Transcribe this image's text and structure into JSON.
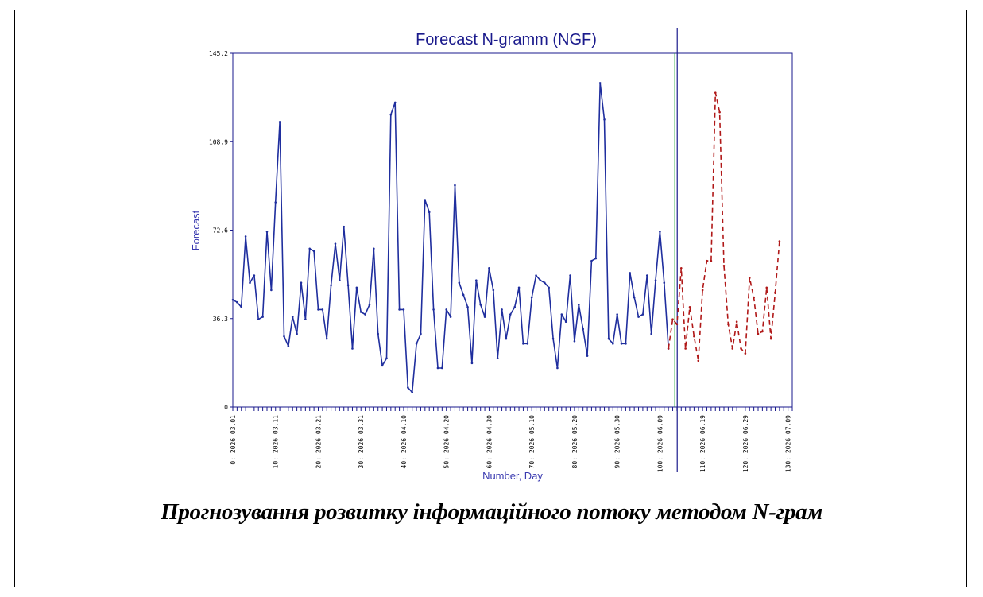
{
  "caption": "Прогнозування розвитку інформаційного потоку методом N-грам",
  "chart_data": {
    "type": "line",
    "title": "Forecast N-gramm (NGF)",
    "xlabel": "Number, Day",
    "ylabel": "Forecast",
    "ylim": [
      0,
      145.2
    ],
    "xlim": [
      0,
      131
    ],
    "yticks": [
      "0",
      "36.3",
      "72.6",
      "108.9",
      "145.2"
    ],
    "xticks": [
      {
        "x": 0,
        "label": "0: 2026.03.01"
      },
      {
        "x": 10,
        "label": "10: 2026.03.11"
      },
      {
        "x": 20,
        "label": "20: 2026.03.21"
      },
      {
        "x": 30,
        "label": "30: 2026.03.31"
      },
      {
        "x": 40,
        "label": "40: 2026.04.10"
      },
      {
        "x": 50,
        "label": "50: 2026.04.20"
      },
      {
        "x": 60,
        "label": "60: 2026.04.30"
      },
      {
        "x": 70,
        "label": "70: 2026.05.10"
      },
      {
        "x": 80,
        "label": "80: 2026.05.20"
      },
      {
        "x": 90,
        "label": "90: 2026.05.30"
      },
      {
        "x": 100,
        "label": "100: 2026.06.09"
      },
      {
        "x": 110,
        "label": "110: 2026.06.19"
      },
      {
        "x": 120,
        "label": "120: 2026.06.29"
      },
      {
        "x": 130,
        "label": "130: 2026.07.09"
      }
    ],
    "grid": false,
    "divider_x": 103.5,
    "colors": {
      "history": "#1f2e9e",
      "forecast": "#b01818",
      "divider_green": "#17a32a",
      "divider_blue": "#1a1a8c",
      "axis": "#1a1a8c"
    },
    "series": [
      {
        "style": "solid",
        "values": [
          [
            0,
            44
          ],
          [
            1,
            43
          ],
          [
            2,
            41
          ],
          [
            3,
            70
          ],
          [
            4,
            51
          ],
          [
            5,
            54
          ],
          [
            6,
            36
          ],
          [
            7,
            37
          ],
          [
            8,
            72
          ],
          [
            9,
            48
          ],
          [
            10,
            84
          ],
          [
            11,
            117
          ],
          [
            12,
            29
          ],
          [
            13,
            25
          ],
          [
            14,
            37
          ],
          [
            15,
            30
          ],
          [
            16,
            51
          ],
          [
            17,
            36
          ],
          [
            18,
            65
          ],
          [
            19,
            64
          ],
          [
            20,
            40
          ],
          [
            21,
            40
          ],
          [
            22,
            28
          ],
          [
            23,
            50
          ],
          [
            24,
            67
          ],
          [
            25,
            52
          ],
          [
            26,
            74
          ],
          [
            27,
            50
          ],
          [
            28,
            24
          ],
          [
            29,
            49
          ],
          [
            30,
            39
          ],
          [
            31,
            38
          ],
          [
            32,
            42
          ],
          [
            33,
            65
          ],
          [
            34,
            30
          ],
          [
            35,
            17
          ],
          [
            36,
            20
          ],
          [
            37,
            120
          ],
          [
            38,
            125
          ],
          [
            39,
            40
          ],
          [
            40,
            40
          ],
          [
            41,
            8
          ],
          [
            42,
            6
          ],
          [
            43,
            26
          ],
          [
            44,
            30
          ],
          [
            45,
            85
          ],
          [
            46,
            80
          ],
          [
            47,
            40
          ],
          [
            48,
            16
          ],
          [
            49,
            16
          ],
          [
            50,
            40
          ],
          [
            51,
            37
          ],
          [
            52,
            91
          ],
          [
            53,
            51
          ],
          [
            54,
            46
          ],
          [
            55,
            41
          ],
          [
            56,
            18
          ],
          [
            57,
            52
          ],
          [
            58,
            42
          ],
          [
            59,
            37
          ],
          [
            60,
            57
          ],
          [
            61,
            48
          ],
          [
            62,
            20
          ],
          [
            63,
            40
          ],
          [
            64,
            28
          ],
          [
            65,
            38
          ],
          [
            66,
            41
          ],
          [
            67,
            49
          ],
          [
            68,
            26
          ],
          [
            69,
            26
          ],
          [
            70,
            45
          ],
          [
            71,
            54
          ],
          [
            72,
            52
          ],
          [
            73,
            51
          ],
          [
            74,
            49
          ],
          [
            75,
            28
          ],
          [
            76,
            16
          ],
          [
            77,
            38
          ],
          [
            78,
            35
          ],
          [
            79,
            54
          ],
          [
            80,
            27
          ],
          [
            81,
            42
          ],
          [
            82,
            32
          ],
          [
            83,
            21
          ],
          [
            84,
            60
          ],
          [
            85,
            61
          ],
          [
            86,
            133
          ],
          [
            87,
            118
          ],
          [
            88,
            28
          ],
          [
            89,
            26
          ],
          [
            90,
            38
          ],
          [
            91,
            26
          ],
          [
            92,
            26
          ],
          [
            93,
            55
          ],
          [
            94,
            45
          ],
          [
            95,
            37
          ],
          [
            96,
            38
          ],
          [
            97,
            54
          ],
          [
            98,
            30
          ],
          [
            99,
            52
          ],
          [
            100,
            72
          ],
          [
            101,
            51
          ],
          [
            102,
            24
          ]
        ]
      },
      {
        "style": "dashed",
        "values": [
          [
            102,
            24
          ],
          [
            103,
            36
          ],
          [
            104,
            34
          ],
          [
            105,
            57
          ],
          [
            106,
            24
          ],
          [
            107,
            41
          ],
          [
            108,
            29
          ],
          [
            109,
            19
          ],
          [
            110,
            48
          ],
          [
            111,
            60
          ],
          [
            112,
            60
          ],
          [
            113,
            129
          ],
          [
            114,
            121
          ],
          [
            115,
            58
          ],
          [
            116,
            34
          ],
          [
            117,
            24
          ],
          [
            118,
            35
          ],
          [
            119,
            24
          ],
          [
            120,
            22
          ],
          [
            121,
            53
          ],
          [
            122,
            45
          ],
          [
            123,
            30
          ],
          [
            124,
            31
          ],
          [
            125,
            49
          ],
          [
            126,
            28
          ],
          [
            127,
            47
          ],
          [
            128,
            68
          ]
        ]
      }
    ]
  }
}
